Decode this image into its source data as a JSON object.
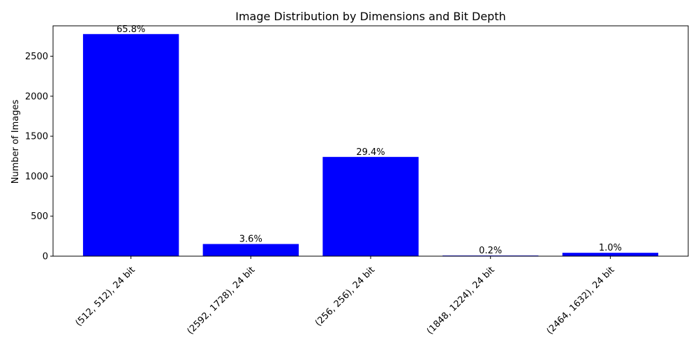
{
  "chart_data": {
    "type": "bar",
    "title": "Image Distribution by Dimensions and Bit Depth",
    "xlabel": "",
    "ylabel": "Number of Images",
    "categories": [
      "(512, 512), 24 bit",
      "(2592, 1728), 24 bit",
      "(256, 256), 24 bit",
      "(1848, 1224), 24 bit",
      "(2464, 1632), 24 bit"
    ],
    "values": [
      2777,
      152,
      1241,
      8,
      42
    ],
    "data_labels": [
      "65.8%",
      "3.6%",
      "29.4%",
      "0.2%",
      "1.0%"
    ],
    "yticks": [
      0,
      500,
      1000,
      1500,
      2000,
      2500
    ],
    "ylim": [
      0,
      2880
    ],
    "bar_color": "#0000ff",
    "grid": false,
    "legend": "none"
  }
}
